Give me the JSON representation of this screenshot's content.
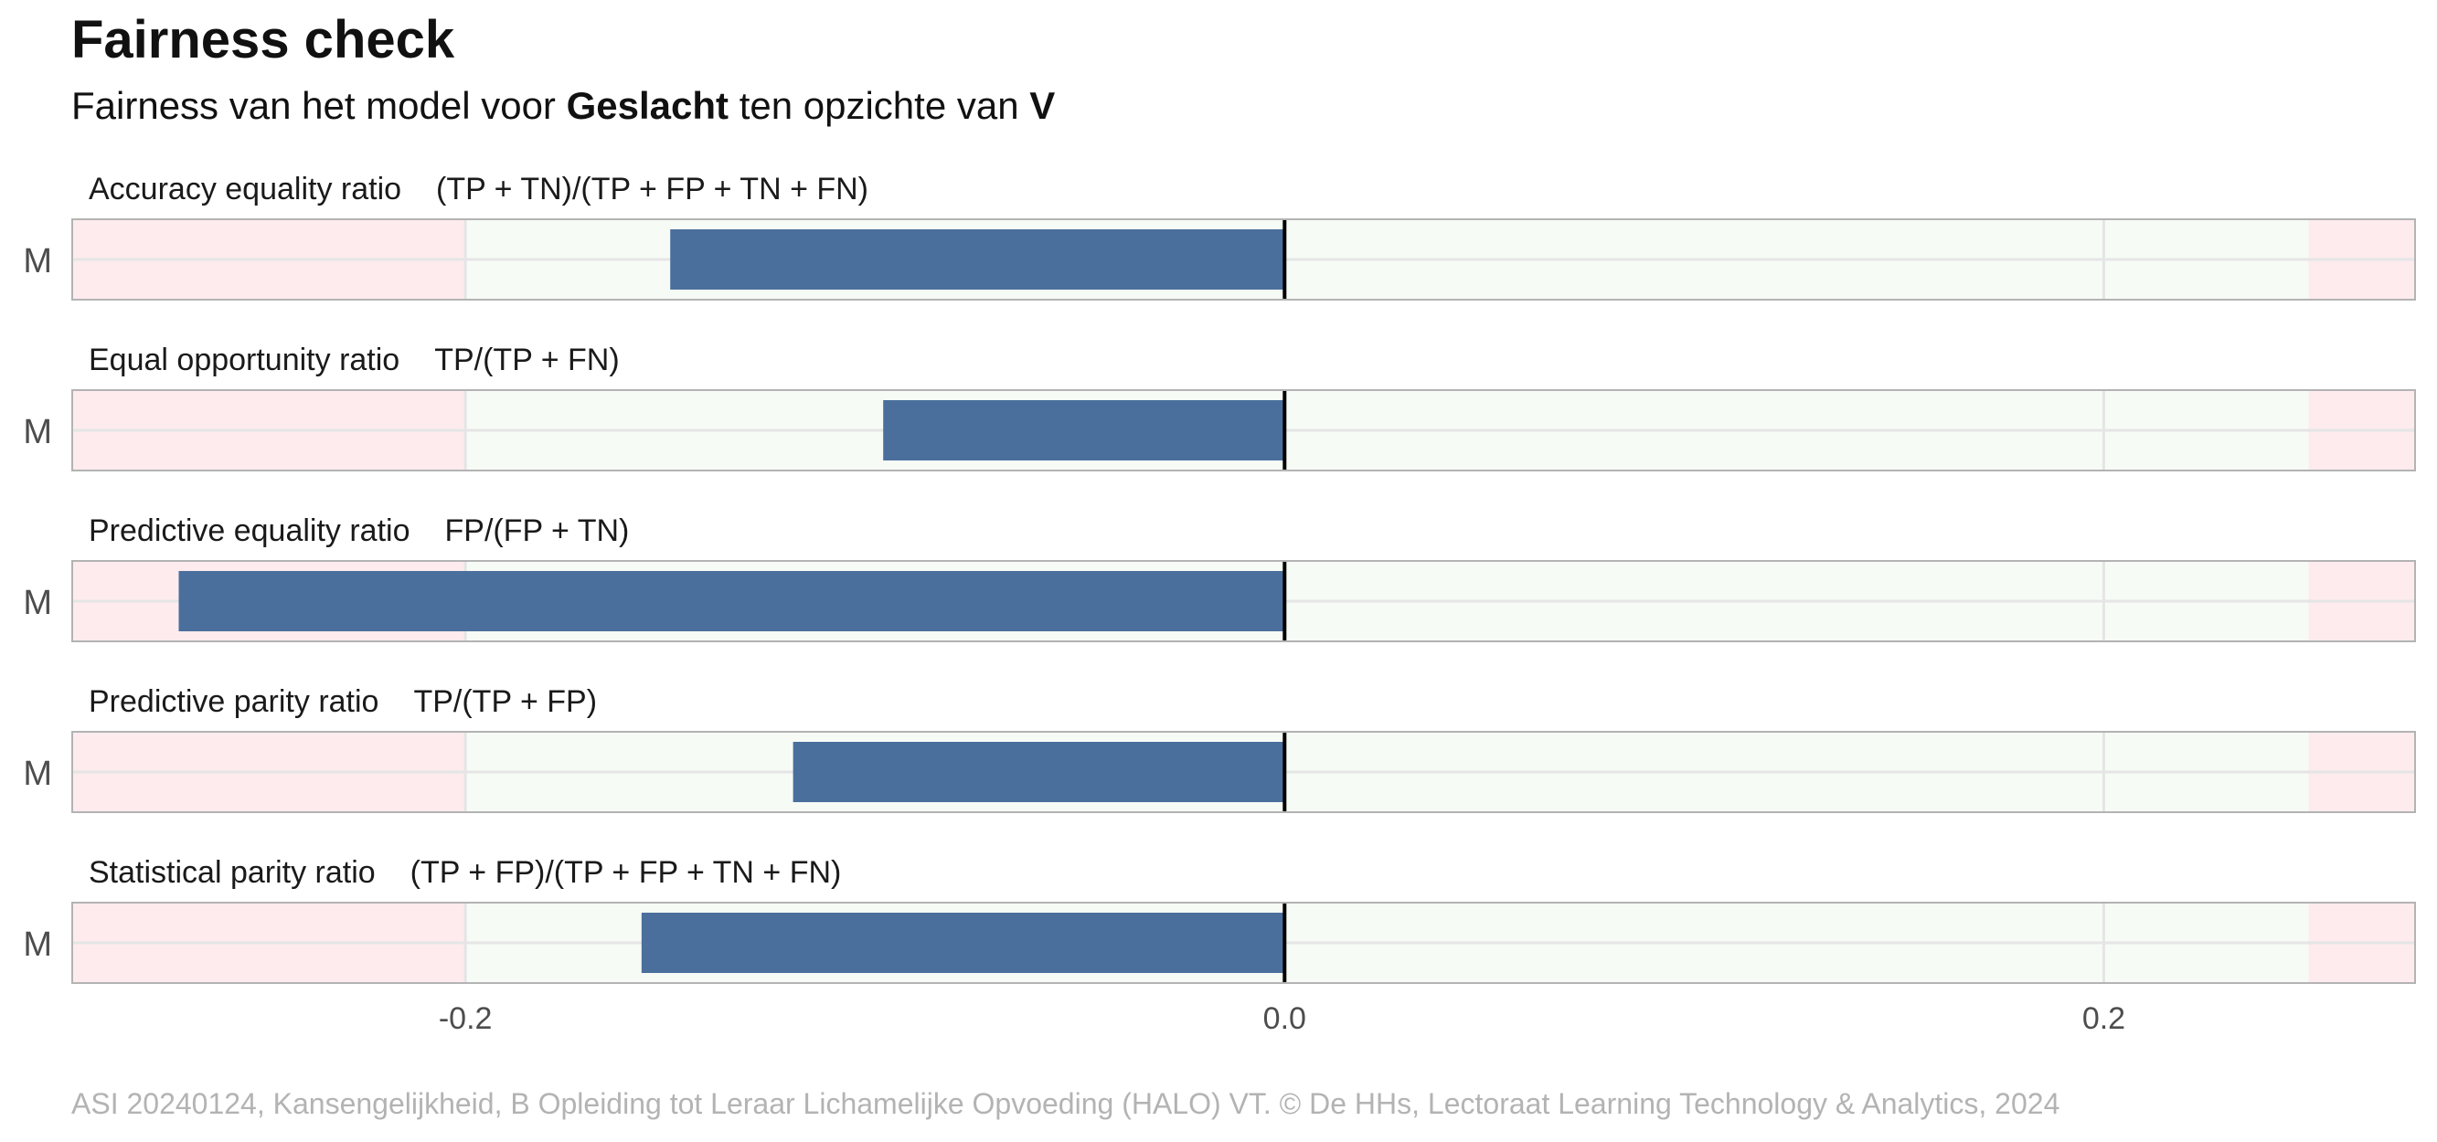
{
  "title": "Fairness check",
  "subtitle": {
    "prefix": "Fairness van het model voor",
    "variable": "Geslacht",
    "middle": "ten opzichte van",
    "reference": "V"
  },
  "caption": "ASI 20240124, Kansengelijkheid, B Opleiding tot Leraar Lichamelijke Opvoeding (HALO) VT. © De HHs, Lectoraat Learning Technology & Analytics, 2024",
  "colors": {
    "bar": "#4a6f9c",
    "fair_zone": "#f7fbf6",
    "unfair_zone": "#fdebee",
    "panel_border": "#b3b3b3",
    "grid": "#e5e5e5",
    "zero_line": "#000000",
    "axis_text": "#4d4d4d"
  },
  "chart_data": {
    "type": "bar",
    "orientation": "horizontal",
    "xlim": [
      -0.296,
      0.276
    ],
    "x_ticks": [
      -0.2,
      0.0,
      0.2
    ],
    "x_tick_labels": [
      "-0.2",
      "0.0",
      "0.2"
    ],
    "fair_range": [
      -0.2,
      0.25
    ],
    "grid": true,
    "category": "M",
    "panels": [
      {
        "metric": "Accuracy equality ratio",
        "formula": "(TP + TN)/(TP + FP + TN + FN)",
        "value": -0.15
      },
      {
        "metric": "Equal opportunity ratio",
        "formula": "TP/(TP + FN)",
        "value": -0.098
      },
      {
        "metric": "Predictive equality ratio",
        "formula": "FP/(FP + TN)",
        "value": -0.27
      },
      {
        "metric": "Predictive parity ratio",
        "formula": "TP/(TP + FP)",
        "value": -0.12
      },
      {
        "metric": "Statistical parity ratio",
        "formula": "(TP + FP)/(TP + FP + TN + FN)",
        "value": -0.157
      }
    ]
  }
}
